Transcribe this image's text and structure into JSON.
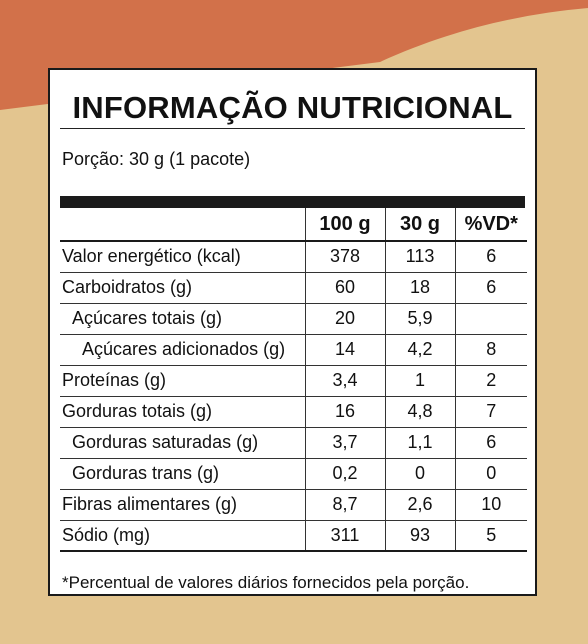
{
  "colors": {
    "background": "#e3c58f",
    "accent": "#d2714a",
    "ink": "#111111"
  },
  "title": "INFORMAÇÃO NUTRICIONAL",
  "portion": "Porção: 30 g (1 pacote)",
  "headers": {
    "name": "",
    "per100": "100 g",
    "per30": "30 g",
    "vd": "%VD*"
  },
  "rows": [
    {
      "name": "Valor energético (kcal)",
      "per100": "378",
      "per30": "113",
      "vd": "6"
    },
    {
      "name": "Carboidratos (g)",
      "per100": "60",
      "per30": "18",
      "vd": "6"
    },
    {
      "name": "Açúcares totais (g)",
      "per100": "20",
      "per30": "5,9",
      "vd": ""
    },
    {
      "name": "Açúcares adicionados (g)",
      "per100": "14",
      "per30": "4,2",
      "vd": "8"
    },
    {
      "name": "Proteínas (g)",
      "per100": "3,4",
      "per30": "1",
      "vd": "2"
    },
    {
      "name": "Gorduras totais (g)",
      "per100": "16",
      "per30": "4,8",
      "vd": "7"
    },
    {
      "name": "Gorduras saturadas (g)",
      "per100": "3,7",
      "per30": "1,1",
      "vd": "6"
    },
    {
      "name": "Gorduras trans (g)",
      "per100": "0,2",
      "per30": "0",
      "vd": "0"
    },
    {
      "name": "Fibras alimentares (g)",
      "per100": "8,7",
      "per30": "2,6",
      "vd": "10"
    },
    {
      "name": "Sódio (mg)",
      "per100": "311",
      "per30": "93",
      "vd": "5"
    }
  ],
  "footnote": "*Percentual de valores diários fornecidos pela porção."
}
